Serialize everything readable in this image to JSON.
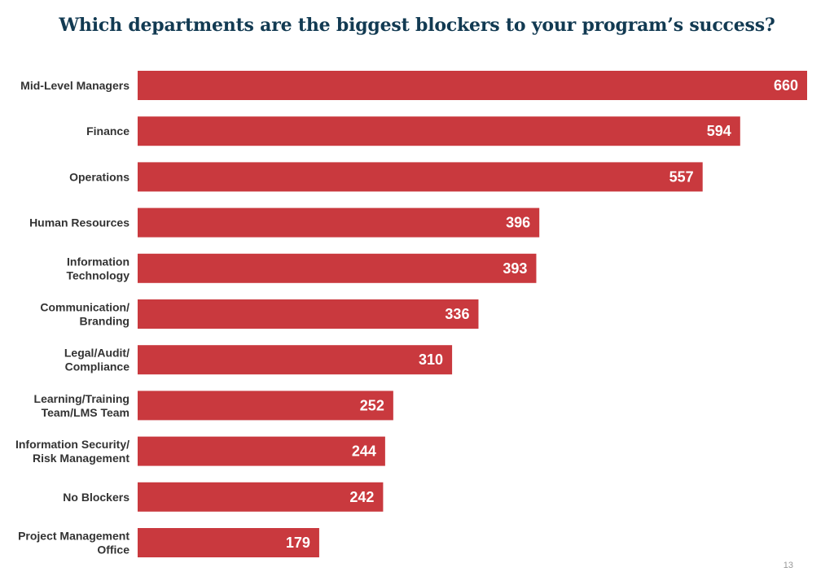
{
  "page": {
    "title": "Which departments are the biggest blockers to your program’s success?",
    "page_number": "13"
  },
  "colors": {
    "bar": "#c9393e",
    "title": "#123a52",
    "label": "#333333",
    "value_label": "#ffffff"
  },
  "chart_data": {
    "type": "bar",
    "orientation": "horizontal",
    "title": "Which departments are the biggest blockers to your program’s success?",
    "categories": [
      [
        "Mid-Level Managers"
      ],
      [
        "Finance"
      ],
      [
        "Operations"
      ],
      [
        "Human Resources"
      ],
      [
        "Information",
        "Technology"
      ],
      [
        "Communication/",
        "Branding"
      ],
      [
        "Legal/Audit/",
        "Compliance"
      ],
      [
        "Learning/Training",
        "Team/LMS Team"
      ],
      [
        "Information Security/",
        "Risk Management"
      ],
      [
        "No Blockers"
      ],
      [
        "Project Management",
        "Office"
      ]
    ],
    "values": [
      660,
      594,
      557,
      396,
      393,
      336,
      310,
      252,
      244,
      242,
      179
    ],
    "xlim": [
      0,
      660
    ],
    "grid": false,
    "legend": "none",
    "data_labels": true
  }
}
